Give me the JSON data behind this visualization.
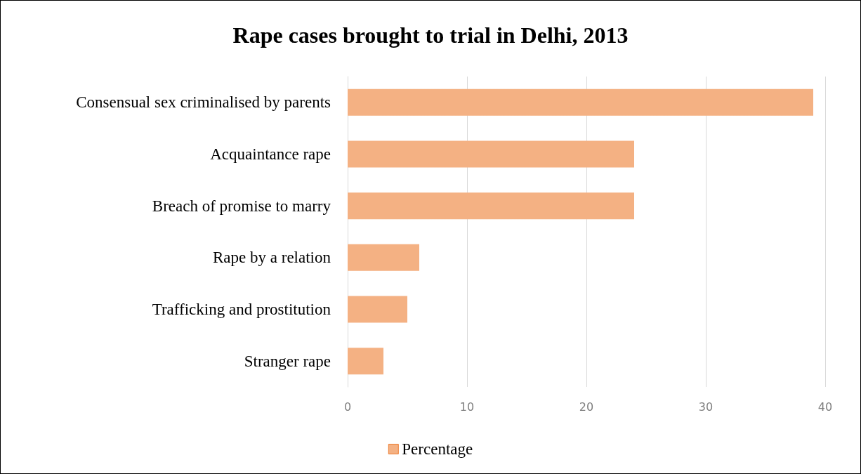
{
  "chart_data": {
    "type": "bar",
    "orientation": "horizontal",
    "title": "Rape cases brought to trial in Delhi, 2013",
    "categories": [
      "Consensual sex criminalised by parents",
      "Acquaintance rape",
      "Breach of promise to marry",
      "Rape by a relation",
      "Trafficking and prostitution",
      "Stranger rape"
    ],
    "series": [
      {
        "name": "Percentage",
        "color": "#f4b183",
        "values": [
          39,
          24,
          24,
          6,
          5,
          3
        ]
      }
    ],
    "xlim": [
      0,
      40
    ],
    "xticks": [
      0,
      10,
      20,
      30,
      40
    ],
    "grid": "x",
    "legend": "bottom"
  }
}
